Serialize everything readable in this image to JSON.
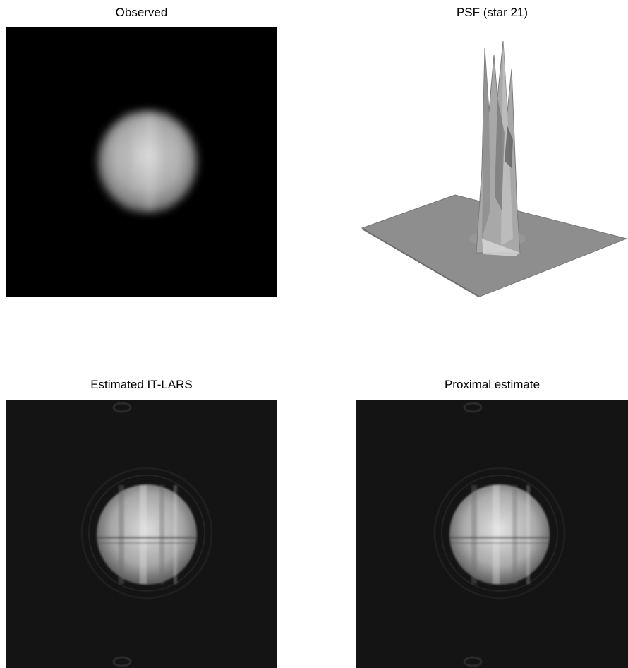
{
  "figure": {
    "panels": [
      {
        "title": "Observed",
        "kind": "planet-image-blurred"
      },
      {
        "title": "PSF (star 21)",
        "kind": "surface-plot"
      },
      {
        "title": "Estimated IT-LARS",
        "kind": "planet-image-deconvolved"
      },
      {
        "title": "Proximal estimate",
        "kind": "planet-image-deconvolved"
      }
    ]
  },
  "colors": {
    "page_background": "#ffffff",
    "observed_background": "#000000",
    "estimate_background": "#141414",
    "planet_light": "#e6e6e6",
    "planet_dark": "#3a3a3a",
    "psf_surface": "#9a9a9a"
  }
}
